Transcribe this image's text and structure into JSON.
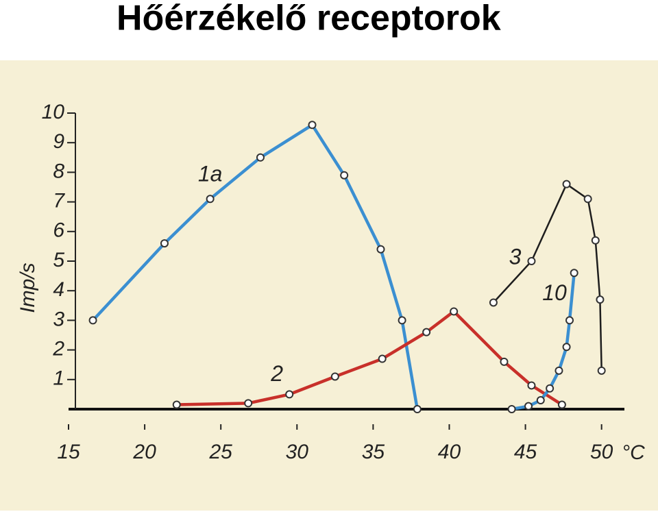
{
  "chart_data": {
    "type": "line",
    "title": "Hőérzékelő receptorok",
    "ylabel": "Imp/s",
    "xlabel": "°C",
    "xlim": [
      15,
      51.5
    ],
    "ylim": [
      0,
      10
    ],
    "xticks": [
      15,
      20,
      25,
      30,
      35,
      40,
      45,
      50
    ],
    "yticks": [
      1,
      2,
      3,
      4,
      5,
      6,
      7,
      8,
      9,
      10
    ],
    "series": [
      {
        "name": "1a",
        "color": "#3b8fd1",
        "x": [
          16.6,
          21.3,
          24.3,
          27.6,
          31.0,
          33.1,
          35.5,
          36.9,
          37.9
        ],
        "values": [
          3.0,
          5.6,
          7.1,
          8.5,
          9.6,
          7.9,
          5.4,
          3.0,
          0
        ]
      },
      {
        "name": "2",
        "color": "#c8302a",
        "x": [
          22.1,
          26.8,
          29.5,
          32.5,
          35.6,
          38.5,
          40.3,
          43.6,
          45.4,
          47.4
        ],
        "values": [
          0.15,
          0.2,
          0.5,
          1.1,
          1.7,
          2.6,
          3.3,
          1.6,
          0.8,
          0.15
        ]
      },
      {
        "name": "3",
        "color": "#1e1e1e",
        "x": [
          42.9,
          45.4,
          47.7,
          49.1,
          49.6,
          49.9,
          50.0
        ],
        "values": [
          3.6,
          5.0,
          7.6,
          7.1,
          5.7,
          3.7,
          1.3
        ]
      },
      {
        "name": "10",
        "color": "#3b8fd1",
        "x": [
          44.1,
          45.2,
          46.0,
          46.6,
          47.2,
          47.7,
          47.9,
          48.2
        ],
        "values": [
          0,
          0.1,
          0.3,
          0.7,
          1.3,
          2.1,
          3.0,
          4.6
        ]
      }
    ]
  }
}
